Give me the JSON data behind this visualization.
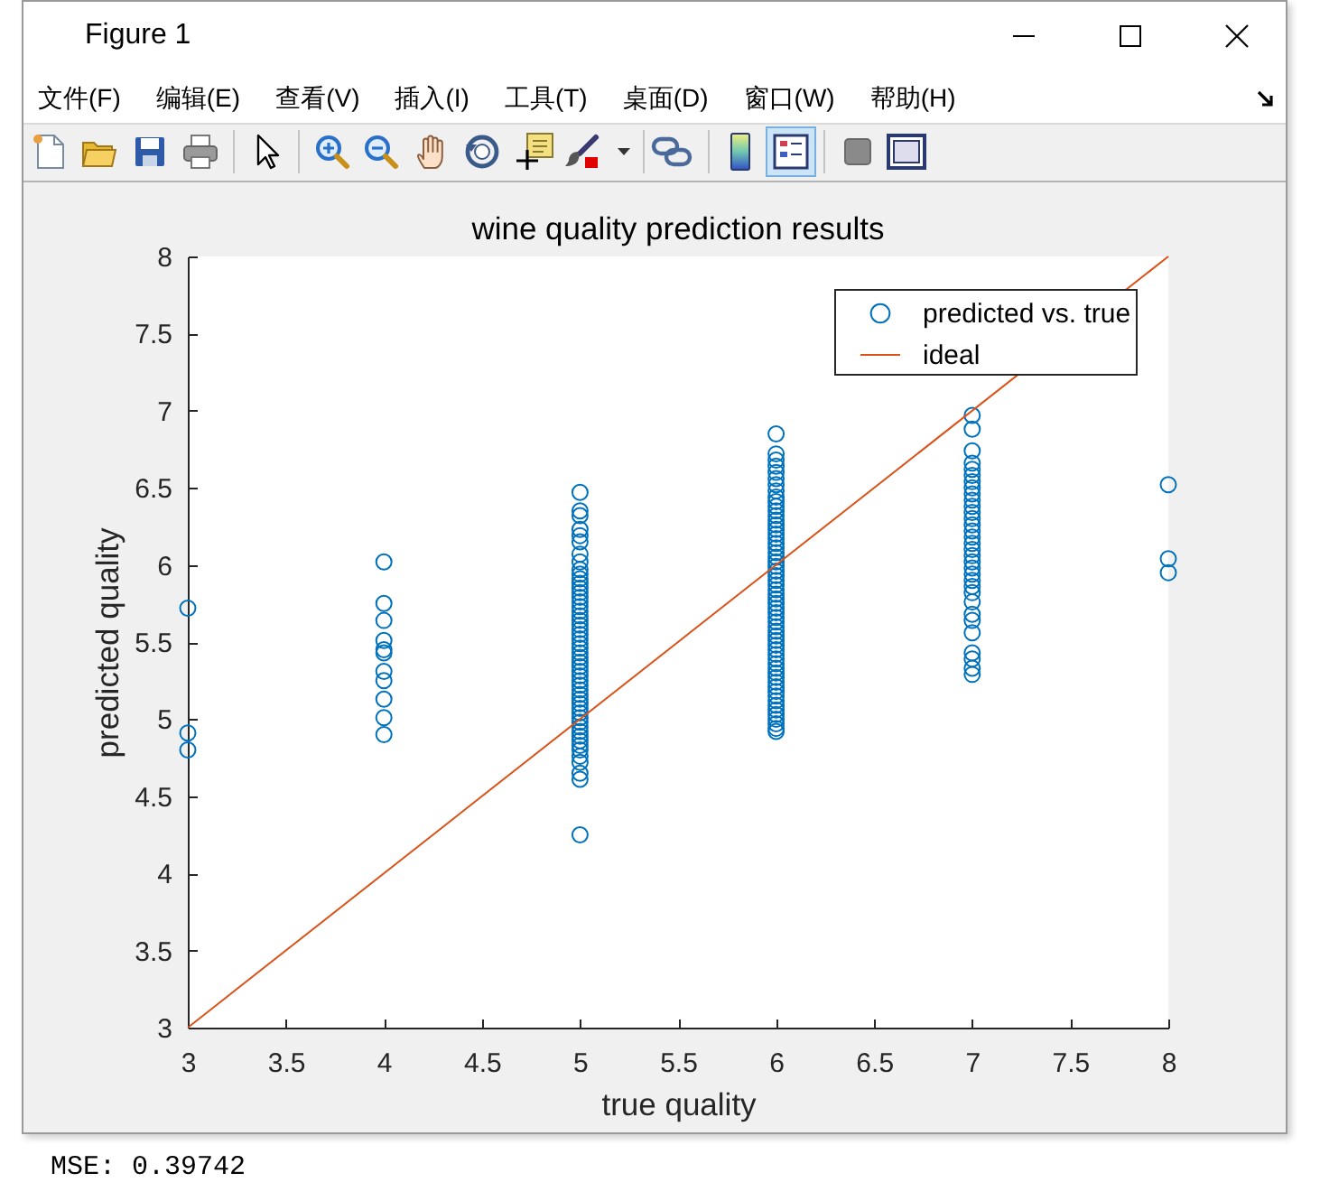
{
  "chart_data": {
    "type": "scatter",
    "title": "wine quality prediction results",
    "xlabel": "true quality",
    "ylabel": "predicted quality",
    "annotations": [
      "Figure 1",
      "文件(F)",
      "编辑(E)",
      "查看(V)",
      "插入(I)",
      "工具(T)",
      "桌面(D)",
      "窗口(W)",
      "帮助(H)",
      "MSE: 0.39742"
    ],
    "xlim": [
      3,
      8
    ],
    "xticks": [
      3,
      3.5,
      4,
      4.5,
      5,
      5.5,
      6,
      6.5,
      7,
      7.5,
      8
    ],
    "ylim": [
      3,
      8
    ],
    "yticks": [
      3,
      3.5,
      4,
      4.5,
      5,
      5.5,
      6,
      6.5,
      7,
      7.5,
      8
    ],
    "legend": "top right",
    "series": [
      {
        "name": "predicted vs. true",
        "type": "scatter",
        "marker": "circle",
        "color": "#0072bd",
        "x": [
          3,
          3,
          3,
          4,
          4,
          4,
          4,
          4,
          4,
          4,
          4,
          4,
          4,
          4,
          5,
          5,
          5,
          5,
          5,
          5,
          5,
          5,
          5,
          5,
          5,
          5,
          5,
          5,
          5,
          5,
          5,
          5,
          5,
          5,
          5,
          5,
          5,
          5,
          5,
          5,
          5,
          5,
          5,
          5,
          5,
          5,
          5,
          5,
          5,
          5,
          5,
          5,
          5,
          5,
          5,
          5,
          5,
          5,
          5,
          5,
          5,
          5,
          5,
          5,
          5,
          5,
          5,
          6,
          6,
          6,
          6,
          6,
          6,
          6,
          6,
          6,
          6,
          6,
          6,
          6,
          6,
          6,
          6,
          6,
          6,
          6,
          6,
          6,
          6,
          6,
          6,
          6,
          6,
          6,
          6,
          6,
          6,
          6,
          6,
          6,
          6,
          6,
          6,
          6,
          6,
          6,
          6,
          6,
          6,
          6,
          6,
          6,
          6,
          6,
          6,
          6,
          6,
          6,
          6,
          6,
          6,
          6,
          6,
          6,
          6,
          6,
          6,
          7,
          7,
          7,
          7,
          7,
          7,
          7,
          7,
          7,
          7,
          7,
          7,
          7,
          7,
          7,
          7,
          7,
          7,
          7,
          7,
          7,
          7,
          7,
          7,
          7,
          7,
          7,
          7,
          7,
          7,
          7,
          7,
          7,
          8,
          8,
          8
        ],
        "values": [
          5.72,
          4.91,
          4.8,
          6.02,
          5.75,
          5.64,
          5.51,
          5.45,
          5.43,
          5.31,
          5.25,
          5.13,
          5.01,
          4.9,
          6.47,
          6.35,
          6.32,
          6.23,
          6.19,
          6.15,
          6.07,
          6.02,
          5.97,
          5.94,
          5.91,
          5.88,
          5.85,
          5.82,
          5.79,
          5.76,
          5.73,
          5.7,
          5.67,
          5.64,
          5.61,
          5.58,
          5.55,
          5.52,
          5.49,
          5.46,
          5.43,
          5.4,
          5.37,
          5.34,
          5.31,
          5.28,
          5.25,
          5.22,
          5.19,
          5.16,
          5.13,
          5.1,
          5.07,
          5.04,
          5.01,
          4.98,
          4.95,
          4.92,
          4.89,
          4.86,
          4.83,
          4.8,
          4.76,
          4.72,
          4.65,
          4.61,
          4.25,
          6.85,
          6.72,
          6.68,
          6.64,
          6.6,
          6.56,
          6.52,
          6.48,
          6.44,
          6.41,
          6.38,
          6.35,
          6.32,
          6.29,
          6.26,
          6.23,
          6.2,
          6.17,
          6.14,
          6.11,
          6.08,
          6.05,
          6.02,
          5.99,
          5.96,
          5.93,
          5.9,
          5.87,
          5.84,
          5.81,
          5.78,
          5.75,
          5.72,
          5.69,
          5.66,
          5.63,
          5.6,
          5.57,
          5.54,
          5.51,
          5.48,
          5.45,
          5.42,
          5.39,
          5.36,
          5.33,
          5.3,
          5.27,
          5.24,
          5.21,
          5.18,
          5.15,
          5.12,
          5.09,
          5.06,
          5.03,
          5.0,
          4.97,
          4.94,
          4.92,
          6.97,
          6.88,
          6.74,
          6.66,
          6.62,
          6.58,
          6.54,
          6.5,
          6.46,
          6.42,
          6.38,
          6.34,
          6.3,
          6.26,
          6.22,
          6.18,
          6.14,
          6.1,
          6.06,
          6.02,
          5.98,
          5.94,
          5.9,
          5.86,
          5.82,
          5.76,
          5.68,
          5.64,
          5.56,
          5.43,
          5.39,
          5.33,
          5.29,
          6.52,
          6.04,
          5.95
        ]
      },
      {
        "name": "ideal",
        "type": "line",
        "color": "#d95319",
        "x": [
          3,
          8
        ],
        "values": [
          3,
          8
        ]
      }
    ]
  }
}
